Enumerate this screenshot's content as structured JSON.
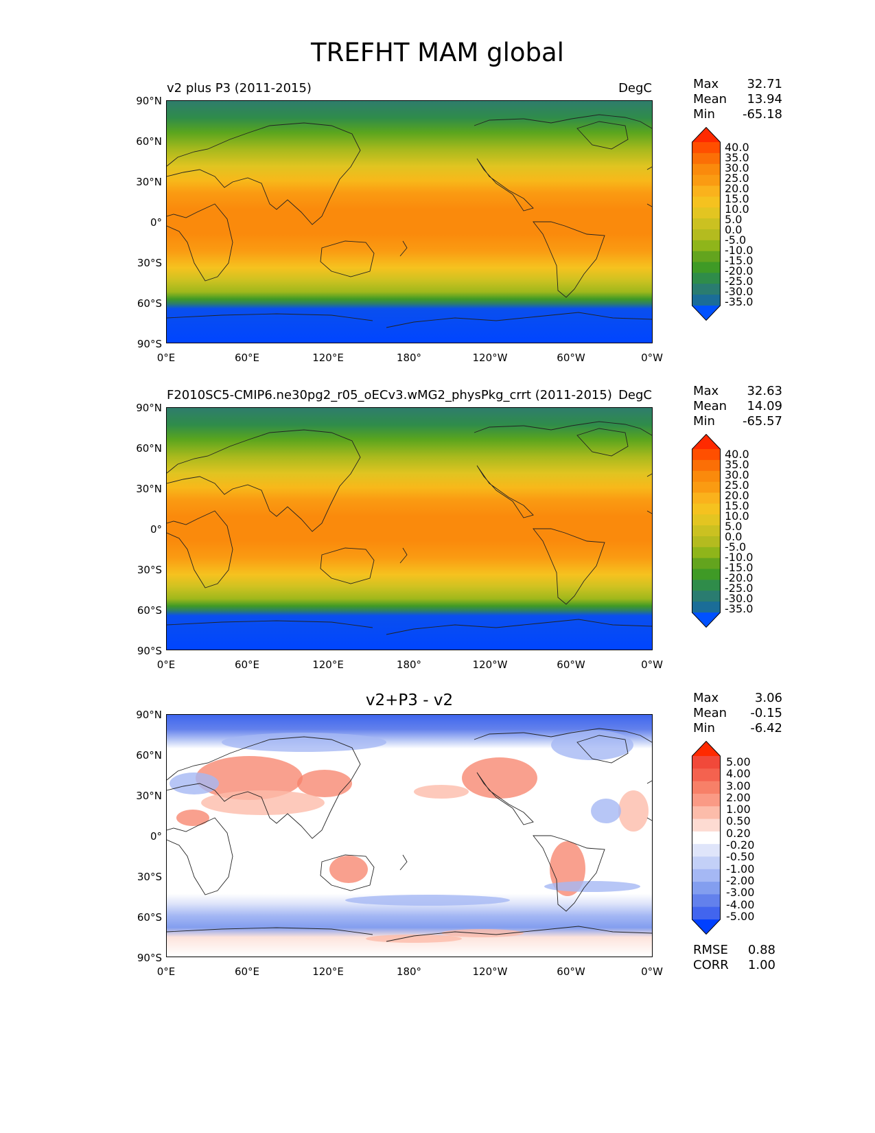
{
  "title": "TREFHT MAM global",
  "x_ticks": [
    "0°E",
    "60°E",
    "120°E",
    "180°",
    "120°W",
    "60°W",
    "0°W"
  ],
  "y_ticks": [
    "90°N",
    "60°N",
    "30°N",
    "0°",
    "30°S",
    "60°S",
    "90°S"
  ],
  "panels": [
    {
      "left_title": "v2 plus P3 (2011-2015)",
      "center_title": "",
      "units": "DegC",
      "stats": [
        {
          "label": "Max",
          "value": "32.71"
        },
        {
          "label": "Mean",
          "value": "13.94"
        },
        {
          "label": "Min",
          "value": "-65.18"
        }
      ],
      "colorbar": {
        "labels": [
          "40.0",
          "35.0",
          "30.0",
          "25.0",
          "20.0",
          "15.0",
          "10.0",
          "5.0",
          "0.0",
          "-5.0",
          "-10.0",
          "-15.0",
          "-20.0",
          "-25.0",
          "-30.0",
          "-35.0"
        ],
        "colors": [
          "#ff2a00",
          "#ff4f00",
          "#fb6f06",
          "#fa8a0c",
          "#fa9b12",
          "#fab21c",
          "#f5c21f",
          "#e3c521",
          "#cbc121",
          "#b4bb1f",
          "#8fb51a",
          "#63a41e",
          "#3f9a26",
          "#2f8c4a",
          "#2a7c70",
          "#1b6d98",
          "#0051ff"
        ]
      }
    },
    {
      "left_title": "F2010SC5-CMIP6.ne30pg2_r05_oECv3.wMG2_physPkg_crrt (2011-2015)",
      "center_title": "",
      "units": "DegC",
      "stats": [
        {
          "label": "Max",
          "value": "32.63"
        },
        {
          "label": "Mean",
          "value": "14.09"
        },
        {
          "label": "Min",
          "value": "-65.57"
        }
      ],
      "colorbar": {
        "labels": [
          "40.0",
          "35.0",
          "30.0",
          "25.0",
          "20.0",
          "15.0",
          "10.0",
          "5.0",
          "0.0",
          "-5.0",
          "-10.0",
          "-15.0",
          "-20.0",
          "-25.0",
          "-30.0",
          "-35.0"
        ],
        "colors": [
          "#ff2a00",
          "#ff4f00",
          "#fb6f06",
          "#fa8a0c",
          "#fa9b12",
          "#fab21c",
          "#f5c21f",
          "#e3c521",
          "#cbc121",
          "#b4bb1f",
          "#8fb51a",
          "#63a41e",
          "#3f9a26",
          "#2f8c4a",
          "#2a7c70",
          "#1b6d98",
          "#0051ff"
        ]
      }
    },
    {
      "left_title": "",
      "center_title": "v2+P3 - v2",
      "units": "",
      "stats": [
        {
          "label": "Max",
          "value": "3.06"
        },
        {
          "label": "Mean",
          "value": "-0.15"
        },
        {
          "label": "Min",
          "value": "-6.42"
        }
      ],
      "colorbar": {
        "labels": [
          "5.00",
          "4.00",
          "3.00",
          "2.00",
          "1.00",
          "0.50",
          "0.20",
          "-0.20",
          "-0.50",
          "-1.00",
          "-2.00",
          "-3.00",
          "-4.00",
          "-5.00"
        ],
        "colors": [
          "#ff2a00",
          "#f1493a",
          "#f4624f",
          "#f78068",
          "#fa9a85",
          "#fcbcaa",
          "#fddbd2",
          "#ffffff",
          "#dfe5fa",
          "#c3d0f7",
          "#a5b8f4",
          "#839eef",
          "#6381ec",
          "#4265ee",
          "#0040ff"
        ]
      },
      "footer_stats": [
        {
          "label": "RMSE",
          "value": "0.88"
        },
        {
          "label": "CORR",
          "value": "1.00"
        }
      ]
    }
  ]
}
